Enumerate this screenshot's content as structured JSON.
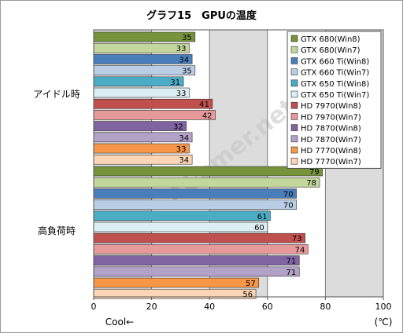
{
  "chart_data": {
    "type": "bar",
    "orientation": "horizontal",
    "title": "グラフ15　GPUの温度",
    "categories": [
      "アイドル時",
      "高負荷時"
    ],
    "series": [
      {
        "name": "GTX 680(Win8)",
        "color": "#77933c",
        "values": [
          35,
          79
        ]
      },
      {
        "name": "GTX 680(Win7)",
        "color": "#c3d69b",
        "values": [
          33,
          78
        ]
      },
      {
        "name": "GTX 660 Ti(Win8)",
        "color": "#4a7ebb",
        "values": [
          34,
          70
        ]
      },
      {
        "name": "GTX 660 Ti(Win7)",
        "color": "#b9cde5",
        "values": [
          35,
          70
        ]
      },
      {
        "name": "GTX 650 Ti(Win8)",
        "color": "#4bacc6",
        "values": [
          31,
          61
        ]
      },
      {
        "name": "GTX 650 Ti(Win7)",
        "color": "#dbeef4",
        "values": [
          33,
          60
        ]
      },
      {
        "name": "HD 7970(Win8)",
        "color": "#c0504d",
        "values": [
          41,
          73
        ]
      },
      {
        "name": "HD 7970(Win7)",
        "color": "#e6999a",
        "values": [
          42,
          74
        ]
      },
      {
        "name": "HD 7870(Win8)",
        "color": "#8064a2",
        "values": [
          32,
          71
        ]
      },
      {
        "name": "HD 7870(Win7)",
        "color": "#b3a2c7",
        "values": [
          34,
          71
        ]
      },
      {
        "name": "HD 7770(Win8)",
        "color": "#f79646",
        "values": [
          33,
          57
        ]
      },
      {
        "name": "HD 7770(Win7)",
        "color": "#fcd5b5",
        "values": [
          34,
          56
        ]
      }
    ],
    "xlim": [
      0,
      100
    ],
    "xticks": [
      0,
      20,
      40,
      60,
      80,
      100
    ],
    "xunit": "(℃)",
    "xnote": "Cool←",
    "grid": true,
    "legend": "top-right",
    "watermark": "4Gamer.net"
  }
}
